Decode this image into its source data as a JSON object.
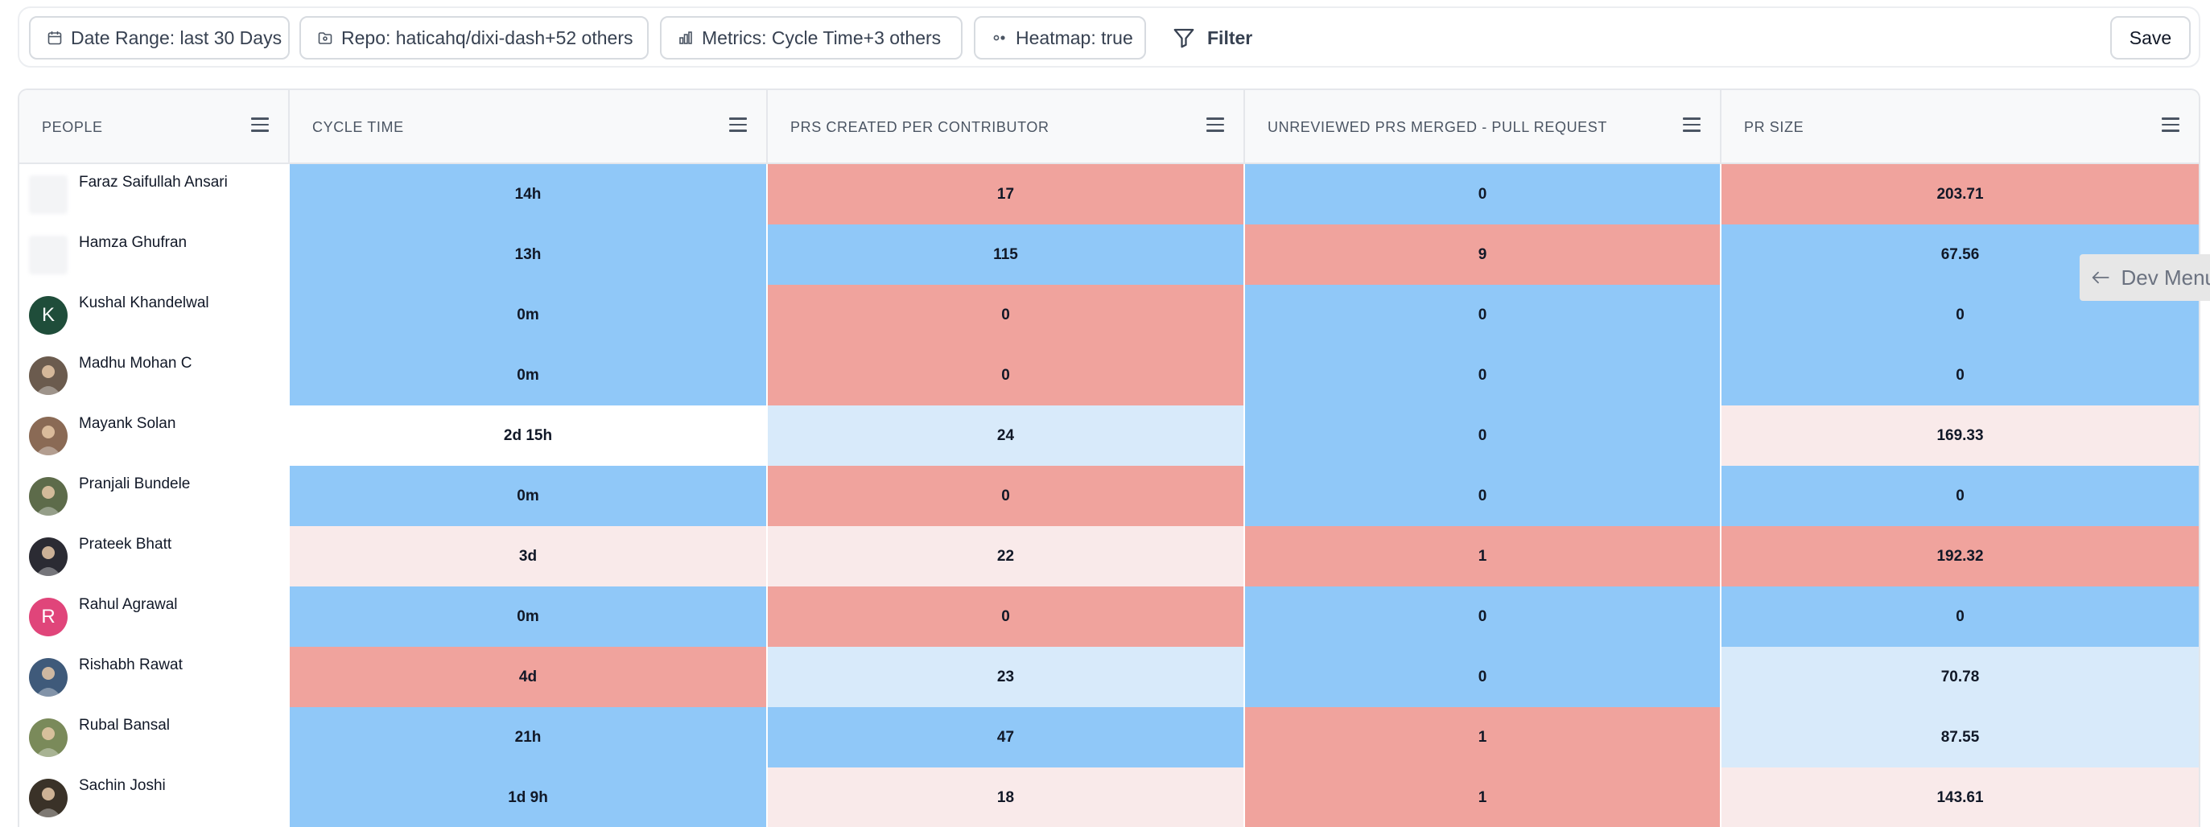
{
  "toolbar": {
    "date_range": "Date Range: last 30 Days",
    "repo": "Repo: haticahq/dixi-dash+52 others",
    "metrics": "Metrics: Cycle Time+3 others",
    "heatmap": "Heatmap: true",
    "filter": "Filter",
    "save": "Save"
  },
  "table": {
    "columns": [
      "PEOPLE",
      "CYCLE TIME",
      "PRS CREATED PER CONTRIBUTOR",
      "UNREVIEWED PRS MERGED - PULL REQUEST",
      "PR SIZE"
    ],
    "heat_colors": {
      "blue": "#90c8f8",
      "red": "#f0a39d",
      "light_blue": "#d8eafa",
      "light_red": "#f9eaea",
      "white": "#ffffff"
    },
    "rows": [
      {
        "name": "Faraz Saifullah Ansari",
        "avatar": {
          "type": "blank",
          "color": "#f3f4f6"
        },
        "cells": [
          {
            "value": "14h",
            "heat": "blue"
          },
          {
            "value": "17",
            "heat": "red"
          },
          {
            "value": "0",
            "heat": "blue"
          },
          {
            "value": "203.71",
            "heat": "red"
          }
        ]
      },
      {
        "name": "Hamza Ghufran",
        "avatar": {
          "type": "blank",
          "color": "#f3f4f6"
        },
        "cells": [
          {
            "value": "13h",
            "heat": "blue"
          },
          {
            "value": "115",
            "heat": "blue"
          },
          {
            "value": "9",
            "heat": "red"
          },
          {
            "value": "67.56",
            "heat": "blue"
          }
        ]
      },
      {
        "name": "Kushal Khandelwal",
        "avatar": {
          "type": "initial",
          "letter": "K",
          "color": "#1f4d3a"
        },
        "cells": [
          {
            "value": "0m",
            "heat": "blue"
          },
          {
            "value": "0",
            "heat": "red"
          },
          {
            "value": "0",
            "heat": "blue"
          },
          {
            "value": "0",
            "heat": "blue"
          }
        ]
      },
      {
        "name": "Madhu Mohan C",
        "avatar": {
          "type": "photo",
          "color": "#6b5b4e"
        },
        "cells": [
          {
            "value": "0m",
            "heat": "blue"
          },
          {
            "value": "0",
            "heat": "red"
          },
          {
            "value": "0",
            "heat": "blue"
          },
          {
            "value": "0",
            "heat": "blue"
          }
        ]
      },
      {
        "name": "Mayank Solan",
        "avatar": {
          "type": "photo",
          "color": "#8a6a55"
        },
        "cells": [
          {
            "value": "2d 15h",
            "heat": "white"
          },
          {
            "value": "24",
            "heat": "light_blue"
          },
          {
            "value": "0",
            "heat": "blue"
          },
          {
            "value": "169.33",
            "heat": "light_red"
          }
        ]
      },
      {
        "name": "Pranjali Bundele",
        "avatar": {
          "type": "photo",
          "color": "#5d6b4a"
        },
        "cells": [
          {
            "value": "0m",
            "heat": "blue"
          },
          {
            "value": "0",
            "heat": "red"
          },
          {
            "value": "0",
            "heat": "blue"
          },
          {
            "value": "0",
            "heat": "blue"
          }
        ]
      },
      {
        "name": "Prateek Bhatt",
        "avatar": {
          "type": "photo",
          "color": "#2b2b33"
        },
        "cells": [
          {
            "value": "3d",
            "heat": "light_red"
          },
          {
            "value": "22",
            "heat": "light_red"
          },
          {
            "value": "1",
            "heat": "red"
          },
          {
            "value": "192.32",
            "heat": "red"
          }
        ]
      },
      {
        "name": "Rahul Agrawal",
        "avatar": {
          "type": "initial",
          "letter": "R",
          "color": "#e0457a"
        },
        "cells": [
          {
            "value": "0m",
            "heat": "blue"
          },
          {
            "value": "0",
            "heat": "red"
          },
          {
            "value": "0",
            "heat": "blue"
          },
          {
            "value": "0",
            "heat": "blue"
          }
        ]
      },
      {
        "name": "Rishabh Rawat",
        "avatar": {
          "type": "photo",
          "color": "#3f5a7a"
        },
        "cells": [
          {
            "value": "4d",
            "heat": "red"
          },
          {
            "value": "23",
            "heat": "light_blue"
          },
          {
            "value": "0",
            "heat": "blue"
          },
          {
            "value": "70.78",
            "heat": "light_blue"
          }
        ]
      },
      {
        "name": "Rubal Bansal",
        "avatar": {
          "type": "photo",
          "color": "#7a8a5a"
        },
        "cells": [
          {
            "value": "21h",
            "heat": "blue"
          },
          {
            "value": "47",
            "heat": "blue"
          },
          {
            "value": "1",
            "heat": "red"
          },
          {
            "value": "87.55",
            "heat": "light_blue"
          }
        ]
      },
      {
        "name": "Sachin Joshi",
        "avatar": {
          "type": "photo",
          "color": "#3a3228"
        },
        "cells": [
          {
            "value": "1d 9h",
            "heat": "blue"
          },
          {
            "value": "18",
            "heat": "light_red"
          },
          {
            "value": "1",
            "heat": "red"
          },
          {
            "value": "143.61",
            "heat": "light_red"
          }
        ]
      }
    ]
  },
  "dev_menu": {
    "label": "Dev Menu"
  },
  "icons": {
    "date": "calendar-icon",
    "repo": "folder-icon",
    "metrics": "bar-chart-icon",
    "heatmap": "dots-icon",
    "filter": "funnel-icon",
    "column_menu": "hamburger-icon",
    "dev_menu": "arrow-left-icon"
  }
}
